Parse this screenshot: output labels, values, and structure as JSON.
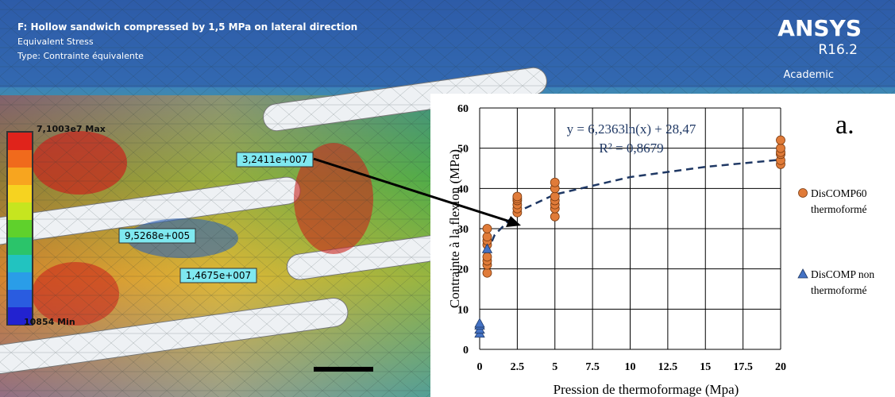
{
  "ansys": {
    "title": "F: Hollow sandwich compressed by 1,5 MPa on lateral direction",
    "subtitle": "Equivalent Stress",
    "type_line": "Type: Contrainte équivalente",
    "logo": "ANSYS",
    "version": "R16.2",
    "license": "Academic",
    "legend_max": "7,1003e7 Max",
    "legend_min": "10854 Min",
    "probes": [
      "3,2411e+007",
      "9,5268e+005",
      "1,4675e+007"
    ]
  },
  "chart_data": {
    "type": "scatter",
    "panel_label": "a.",
    "xlabel": "Pression de thermoformage (Mpa)",
    "ylabel": "Contrainte à la flexion (MPa)",
    "annotations": [
      "y = 6,2363ln(x)  + 28,47",
      "R² = 0,8679"
    ],
    "xlim": [
      0,
      20
    ],
    "xticks": [
      0,
      2.5,
      5,
      7.5,
      10,
      12.5,
      15,
      17.5,
      20
    ],
    "ylim": [
      0,
      60
    ],
    "yticks": [
      0,
      10,
      20,
      30,
      40,
      50,
      60
    ],
    "grid": true,
    "legend": "right",
    "series": [
      {
        "name": "DisCOMP60 thermoformé",
        "color": "#e07b39",
        "marker": "circle",
        "x": [
          0.5,
          0.5,
          0.5,
          0.5,
          0.5,
          0.5,
          0.5,
          0.5,
          2.5,
          2.5,
          2.5,
          2.5,
          2.5,
          2.5,
          5,
          5,
          5,
          5,
          5,
          5,
          5,
          20,
          20,
          20,
          20,
          20,
          20
        ],
        "values": [
          19,
          21,
          22,
          23,
          26,
          27,
          28,
          30,
          34,
          35,
          36,
          37,
          37.5,
          38,
          33,
          35,
          36,
          37,
          38,
          40,
          41.5,
          46,
          47,
          48.5,
          49,
          50,
          52
        ]
      },
      {
        "name": "DisCOMP non thermoformé",
        "color": "#4472c4",
        "marker": "triangle",
        "x": [
          0,
          0,
          0,
          0,
          0.5
        ],
        "values": [
          4,
          5,
          6,
          6.5,
          25
        ]
      }
    ],
    "trendline": {
      "color": "#1f3864",
      "dash": true,
      "x": [
        0.5,
        1,
        2.5,
        5,
        10,
        15,
        20
      ],
      "values": [
        24.15,
        28.47,
        34.18,
        38.51,
        42.83,
        45.36,
        47.15
      ]
    }
  }
}
